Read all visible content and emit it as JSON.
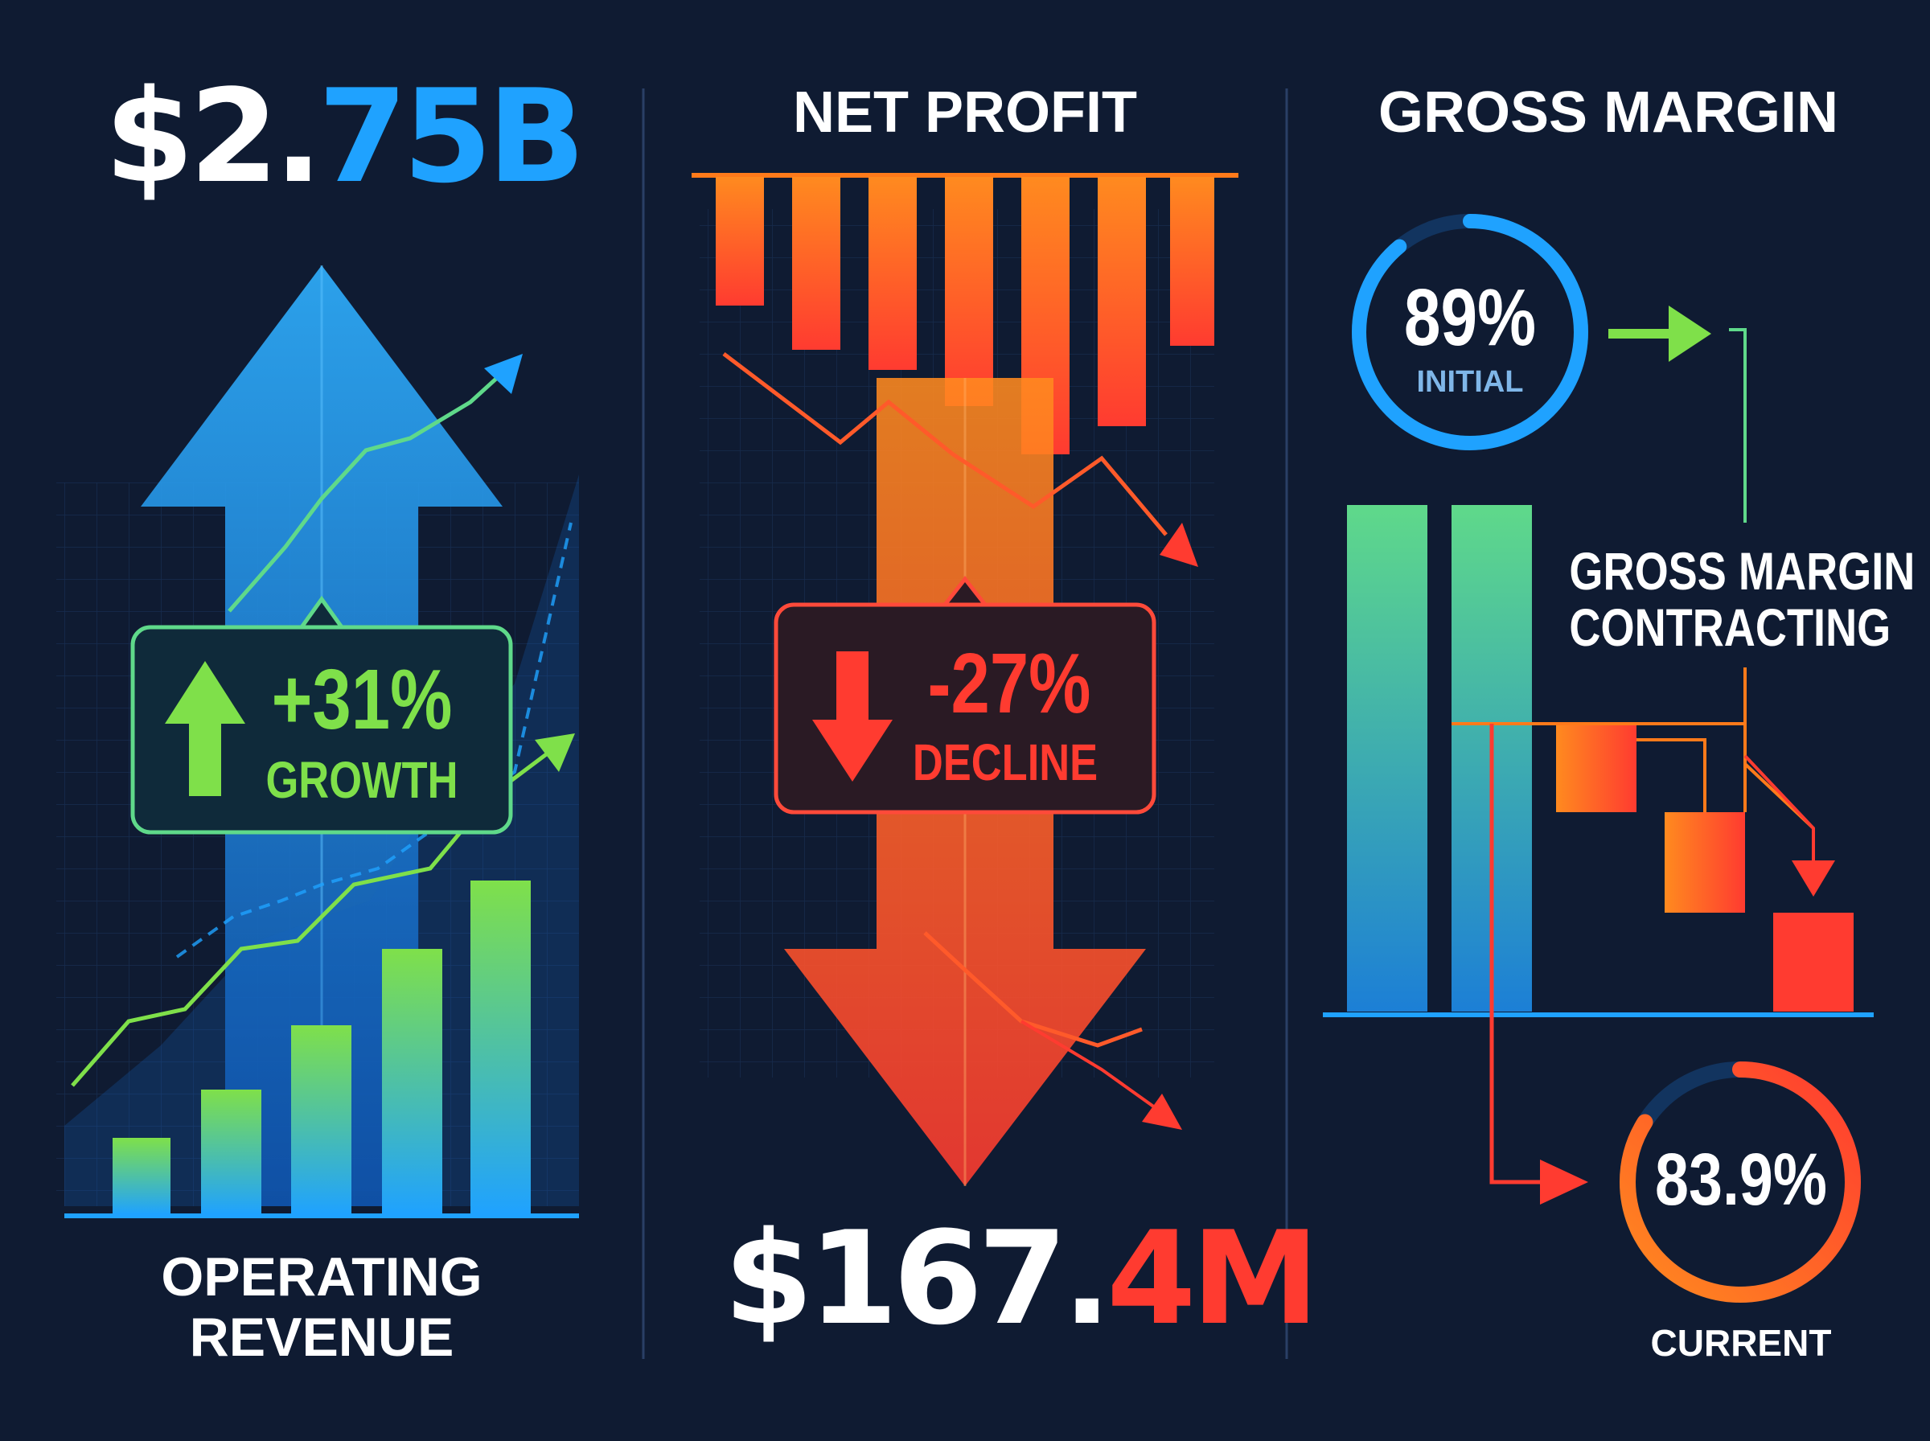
{
  "revenue_panel": {
    "value_prefix": "$2.",
    "value_suffix": "75B",
    "change_value": "+31%",
    "change_label": "GROWTH",
    "label_line1": "OPERATING",
    "label_line2": "REVENUE"
  },
  "profit_panel": {
    "title": "NET PROFIT",
    "change_value": "-27%",
    "change_label": "DECLINE",
    "value_prefix": "$167.",
    "value_suffix": "4M"
  },
  "margin_panel": {
    "title": "GROSS MARGIN",
    "initial_value": "89%",
    "initial_label": "INITIAL",
    "initial_fraction": 0.89,
    "note_line1": "GROSS MARGIN",
    "note_line2": "CONTRACTING",
    "current_value": "83.9%",
    "current_label": "CURRENT",
    "current_fraction": 0.839
  },
  "colors": {
    "background": "#0f1b32",
    "blue": "#1fa2ff",
    "green": "#7fe04a",
    "red": "#ff3b30",
    "orange": "#ff7a1a",
    "divider": "#2a3f66"
  },
  "icons": {
    "revenue_up": "arrow-up-icon",
    "profit_down": "arrow-down-icon",
    "margin_flow": "arrow-right-icon"
  }
}
